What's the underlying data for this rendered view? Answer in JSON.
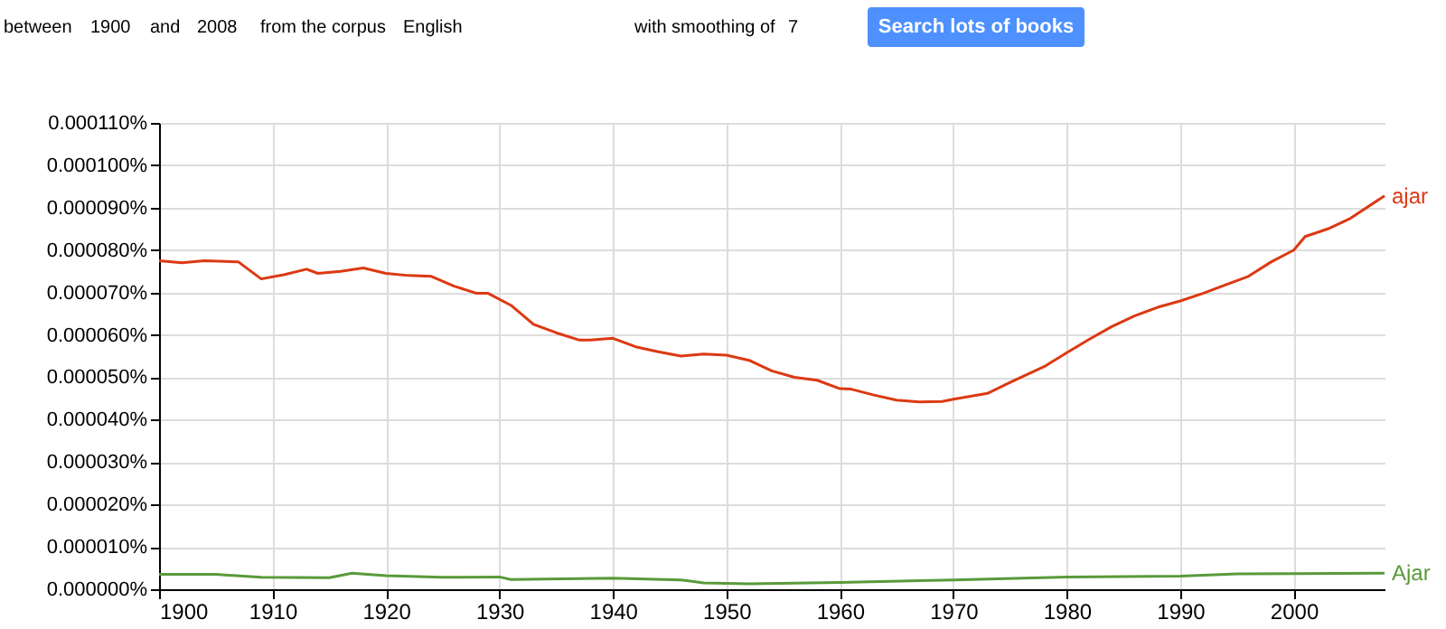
{
  "chart_data": {
    "type": "line",
    "xlim": [
      1900,
      2008
    ],
    "xticks": [
      1900,
      1910,
      1920,
      1930,
      1940,
      1950,
      1960,
      1970,
      1980,
      1990,
      2000
    ],
    "ylim": [
      0,
      0.00011
    ],
    "yticks": [
      {
        "value": 0,
        "label": "0.000000%"
      },
      {
        "value": 1e-05,
        "label": "0.000010%"
      },
      {
        "value": 2e-05,
        "label": "0.000020%"
      },
      {
        "value": 3e-05,
        "label": "0.000030%"
      },
      {
        "value": 4e-05,
        "label": "0.000040%"
      },
      {
        "value": 5e-05,
        "label": "0.000050%"
      },
      {
        "value": 6e-05,
        "label": "0.000060%"
      },
      {
        "value": 7e-05,
        "label": "0.000070%"
      },
      {
        "value": 8e-05,
        "label": "0.000080%"
      },
      {
        "value": 9e-05,
        "label": "0.000090%"
      },
      {
        "value": 0.0001,
        "label": "0.000100%"
      },
      {
        "value": 0.00011,
        "label": "0.000110%"
      }
    ],
    "grid": true,
    "legend": false,
    "marker": "none",
    "line_style": "solid",
    "annotations": [
      "between",
      "1900",
      "and",
      "2008",
      "from the corpus",
      "English",
      "with smoothing of",
      "7",
      "Search lots of books"
    ],
    "series": [
      {
        "name": "ajar",
        "color": "#dc3912",
        "x": [
          1900,
          1902,
          1904,
          1907,
          1909,
          1911,
          1913,
          1914,
          1916,
          1918,
          1920,
          1922,
          1924,
          1926,
          1928,
          1929,
          1931,
          1933,
          1935,
          1937,
          1938,
          1940,
          1942,
          1944,
          1946,
          1948,
          1950,
          1952,
          1954,
          1956,
          1958,
          1960,
          1961,
          1963,
          1965,
          1967,
          1969,
          1970,
          1973,
          1975,
          1978,
          1980,
          1982,
          1984,
          1986,
          1988,
          1990,
          1992,
          1994,
          1996,
          1998,
          2000,
          2001,
          2003,
          2005,
          2008
        ],
        "values": [
          7.75e-05,
          7.7e-05,
          7.75e-05,
          7.72e-05,
          7.32e-05,
          7.42e-05,
          7.55e-05,
          7.45e-05,
          7.5e-05,
          7.58e-05,
          7.45e-05,
          7.4e-05,
          7.38e-05,
          7.15e-05,
          6.98e-05,
          6.98e-05,
          6.7e-05,
          6.25e-05,
          6.05e-05,
          5.88e-05,
          5.88e-05,
          5.92e-05,
          5.72e-05,
          5.6e-05,
          5.5e-05,
          5.55e-05,
          5.52e-05,
          5.4e-05,
          5.15e-05,
          5e-05,
          4.93e-05,
          4.73e-05,
          4.72e-05,
          4.58e-05,
          4.46e-05,
          4.42e-05,
          4.43e-05,
          4.48e-05,
          4.62e-05,
          4.88e-05,
          5.25e-05,
          5.58e-05,
          5.9e-05,
          6.2e-05,
          6.45e-05,
          6.65e-05,
          6.8e-05,
          6.98e-05,
          7.18e-05,
          7.38e-05,
          7.72e-05,
          8e-05,
          8.32e-05,
          8.5e-05,
          8.75e-05,
          9.28e-05
        ]
      },
      {
        "name": "Ajar",
        "color": "#5a9a3a",
        "x": [
          1900,
          1905,
          1909,
          1915,
          1917,
          1920,
          1925,
          1930,
          1931,
          1940,
          1946,
          1948,
          1952,
          1960,
          1970,
          1980,
          1990,
          1995,
          2000,
          2008
        ],
        "values": [
          3.5e-06,
          3.5e-06,
          2.8e-06,
          2.7e-06,
          3.8e-06,
          3.2e-06,
          2.8e-06,
          2.9e-06,
          2.3e-06,
          2.6e-06,
          2.2e-06,
          1.5e-06,
          1.3e-06,
          1.6e-06,
          2.2e-06,
          2.9e-06,
          3.1e-06,
          3.6e-06,
          3.7e-06,
          3.8e-06
        ]
      }
    ]
  }
}
